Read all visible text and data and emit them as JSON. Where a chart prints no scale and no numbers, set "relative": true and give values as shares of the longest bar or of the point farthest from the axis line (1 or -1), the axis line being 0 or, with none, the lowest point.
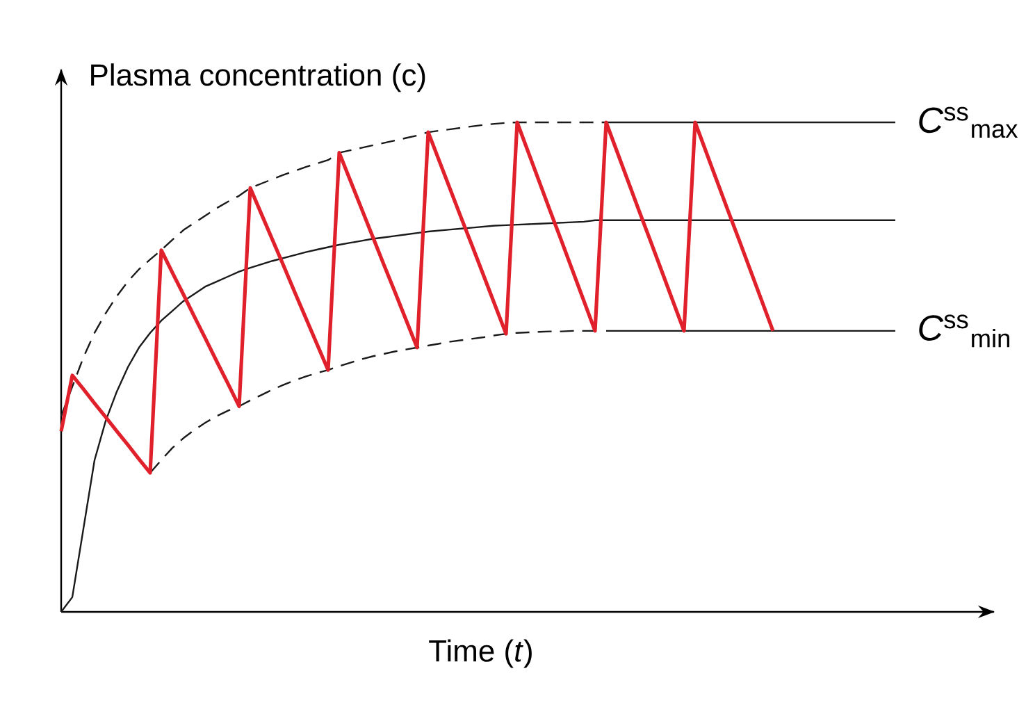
{
  "chart_data": {
    "type": "line",
    "relative": true,
    "xlabel": "Time (*t*)",
    "ylabel": "Plasma concentration (c)",
    "legend": false,
    "categories": [
      null,
      null,
      null,
      null,
      null,
      null,
      null,
      null,
      null,
      null,
      null,
      null,
      null,
      null,
      null,
      null,
      null,
      null,
      null,
      null,
      null,
      null,
      null,
      null,
      null,
      null,
      null,
      null,
      null,
      null,
      null,
      null,
      null,
      null,
      null,
      null,
      null,
      null,
      null,
      null,
      null,
      null,
      null,
      null,
      null,
      null,
      null,
      null,
      null,
      null,
      null,
      null,
      null,
      null,
      null,
      null,
      null,
      null,
      null,
      null,
      null,
      null,
      null,
      null,
      null,
      null,
      null,
      null,
      null,
      null,
      null,
      null,
      null,
      null,
      null,
      null
    ],
    "series": [
      {
        "color": "#1a1a1a",
        "line_style": "solid",
        "values": [
          0,
          0.03,
          0.17,
          0.31,
          0.39,
          0.45,
          0.5,
          0.54,
          0.57,
          0.595,
          0.615,
          0.635,
          0.65,
          0.665,
          0.675,
          0.685,
          0.695,
          0.703,
          0.71,
          0.717,
          0.723,
          0.729,
          0.735,
          0.74,
          0.745,
          0.75,
          0.754,
          0.758,
          0.762,
          0.765,
          0.768,
          0.771,
          0.774,
          0.777,
          0.779,
          0.781,
          0.783,
          0.785,
          0.787,
          0.789,
          0.79,
          0.791,
          0.792,
          0.793,
          0.794,
          0.795,
          0.796,
          0.797,
          0.8,
          0.8,
          0.8,
          0.8,
          0.8,
          0.8,
          0.8,
          0.8,
          0.8,
          0.8,
          0.8,
          0.8,
          0.8,
          0.8,
          0.8,
          0.8,
          0.8,
          0.8,
          0.8,
          0.8,
          0.8,
          0.8,
          0.8,
          0.8,
          0.8,
          0.8,
          0.8,
          0.8
        ]
      },
      {
        "color": "#1a1a1a",
        "line_style": "dashed",
        "values": [
          0.4,
          0.46,
          0.52,
          0.57,
          0.61,
          0.645,
          0.675,
          0.7,
          0.72,
          0.739,
          0.76,
          0.78,
          0.795,
          0.81,
          0.825,
          0.838,
          0.85,
          0.866,
          0.875,
          0.884,
          0.893,
          0.901,
          0.909,
          0.916,
          0.923,
          0.938,
          0.943,
          0.948,
          0.953,
          0.958,
          0.963,
          0.968,
          0.973,
          0.98,
          0.983,
          0.986,
          0.989,
          0.992,
          0.995,
          0.997,
          0.999,
          1,
          1,
          1,
          1,
          1,
          1,
          1,
          1,
          1,
          null,
          null,
          null,
          null,
          null,
          null,
          null,
          null,
          null,
          null,
          null,
          null,
          null,
          null,
          null,
          null,
          null,
          null,
          null,
          null,
          null,
          null,
          null,
          null,
          null,
          null
        ]
      },
      {
        "color": "#1a1a1a",
        "line_style": "dashed",
        "values": [
          null,
          null,
          null,
          null,
          null,
          null,
          null,
          null,
          0.284,
          0.31,
          0.335,
          0.355,
          0.372,
          0.387,
          0.4,
          0.411,
          0.42,
          0.432,
          0.443,
          0.454,
          0.464,
          0.473,
          0.481,
          0.488,
          0.494,
          0.502,
          0.509,
          0.516,
          0.522,
          0.527,
          0.532,
          0.536,
          0.54,
          0.544,
          0.548,
          0.552,
          0.555,
          0.558,
          0.561,
          0.565,
          0.568,
          0.57,
          0.571,
          0.572,
          0.573,
          0.573,
          0.574,
          0.574,
          0.574,
          null,
          null,
          null,
          null,
          null,
          null,
          null,
          null,
          null,
          null,
          null,
          null,
          null,
          null,
          null,
          null,
          null,
          null,
          null,
          null,
          null,
          null,
          null,
          null,
          null,
          null,
          null
        ]
      },
      {
        "name": "*C*$^{ss}$$_{max}$",
        "color": "#1a1a1a",
        "line_style": "solid",
        "values": [
          null,
          null,
          null,
          null,
          null,
          null,
          null,
          null,
          null,
          null,
          null,
          null,
          null,
          null,
          null,
          null,
          null,
          null,
          null,
          null,
          null,
          null,
          null,
          null,
          null,
          null,
          null,
          null,
          null,
          null,
          null,
          null,
          null,
          null,
          null,
          null,
          null,
          null,
          null,
          null,
          null,
          null,
          null,
          null,
          null,
          null,
          null,
          null,
          null,
          1,
          1,
          1,
          1,
          1,
          1,
          1,
          1,
          1,
          1,
          1,
          1,
          1,
          1,
          1,
          1,
          1,
          1,
          1,
          1,
          1,
          1,
          1,
          1,
          1,
          1,
          1
        ]
      },
      {
        "name": "*C*$^{ss}$$_{min}$",
        "color": "#1a1a1a",
        "line_style": "solid",
        "values": [
          null,
          null,
          null,
          null,
          null,
          null,
          null,
          null,
          null,
          null,
          null,
          null,
          null,
          null,
          null,
          null,
          null,
          null,
          null,
          null,
          null,
          null,
          null,
          null,
          null,
          null,
          null,
          null,
          null,
          null,
          null,
          null,
          null,
          null,
          null,
          null,
          null,
          null,
          null,
          null,
          null,
          null,
          null,
          null,
          null,
          null,
          null,
          null,
          null,
          0.574,
          0.574,
          0.574,
          0.574,
          0.574,
          0.574,
          0.574,
          0.574,
          0.574,
          0.574,
          0.574,
          0.574,
          0.574,
          0.574,
          0.574,
          0.574,
          0.574,
          0.574,
          0.574,
          0.574,
          0.574,
          0.574,
          0.574,
          0.574,
          0.574,
          0.574,
          0.574
        ]
      },
      {
        "color": "#e0202a",
        "line_style": "solid",
        "values": [
          0.369,
          0.483,
          0.455,
          0.426,
          0.398,
          0.369,
          0.341,
          0.312,
          0.284,
          0.739,
          0.693,
          0.648,
          0.602,
          0.557,
          0.511,
          0.466,
          0.42,
          0.866,
          0.813,
          0.76,
          0.707,
          0.653,
          0.6,
          0.547,
          0.494,
          0.938,
          0.881,
          0.824,
          0.767,
          0.71,
          0.654,
          0.597,
          0.54,
          0.98,
          0.921,
          0.862,
          0.803,
          0.745,
          0.686,
          0.627,
          0.568,
          1,
          0.939,
          0.878,
          0.817,
          0.757,
          0.696,
          0.635,
          0.574,
          1,
          0.939,
          0.878,
          0.817,
          0.757,
          0.696,
          0.635,
          0.574,
          1,
          0.939,
          0.878,
          0.817,
          0.757,
          0.696,
          0.635,
          0.574,
          null,
          null,
          null,
          null,
          null,
          null,
          null,
          null,
          null,
          null,
          null
        ]
      }
    ]
  }
}
